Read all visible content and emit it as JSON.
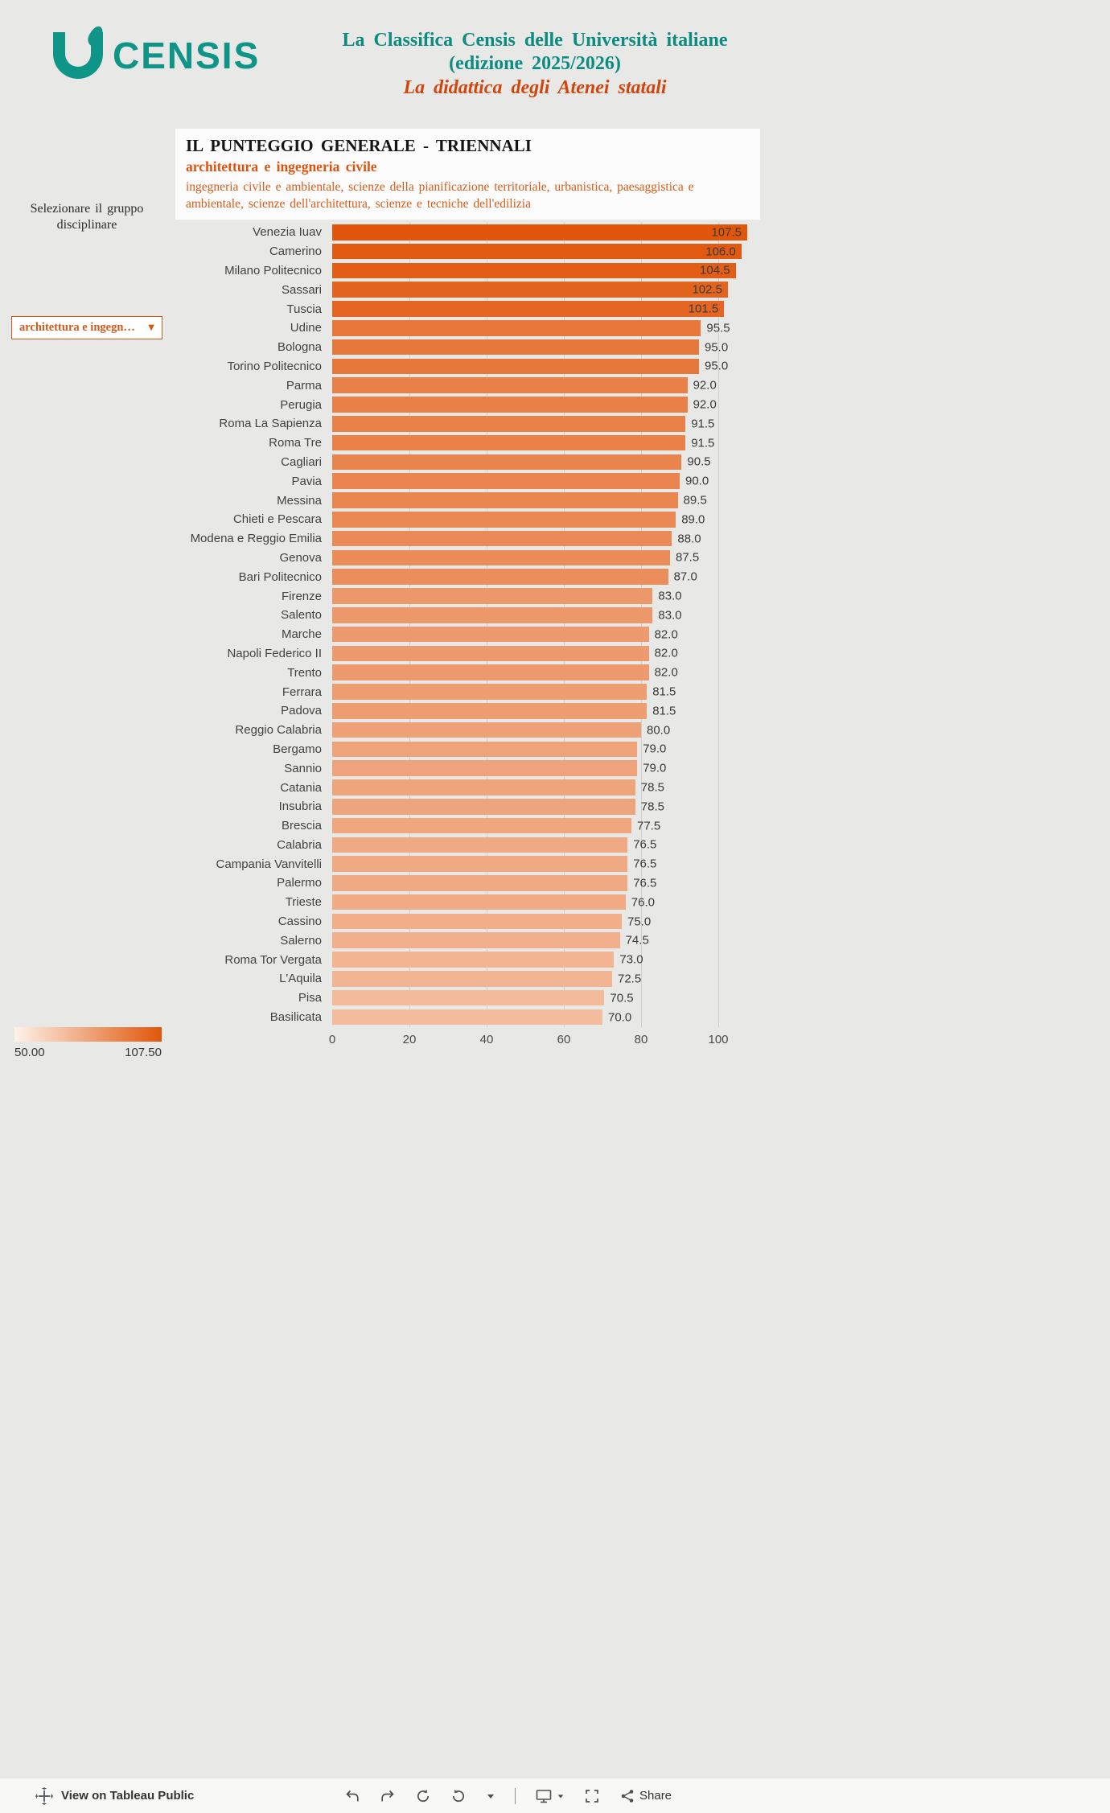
{
  "brand": {
    "teal": "#0f9488",
    "title_teal": "#0c8c80",
    "orange": "#d2440c"
  },
  "header": {
    "logo_text": "CENSIS",
    "title_line1": "La Classifica Censis delle Università italiane",
    "title_line2": "(edizione 2025/2026)",
    "subtitle": "La didattica degli Atenei statali"
  },
  "sidebar": {
    "filter_label": "Selezionare il gruppo disciplinare",
    "dropdown": {
      "value": "architettura e ingegn…"
    }
  },
  "panel": {
    "title": "IL PUNTEGGIO GENERALE - TRIENNALI",
    "subtitle": "architettura e ingegneria civile",
    "description": "ingegneria civile e ambientale, scienze della pianificazione territoriale, urbanistica, paesaggistica e ambientale, scienze dell'architettura, scienze e tecniche dell'edilizia"
  },
  "chart_data": {
    "type": "bar",
    "orientation": "horizontal",
    "title": "IL PUNTEGGIO GENERALE - TRIENNALI",
    "group": "architettura e ingegneria civile",
    "categories": [
      "Venezia Iuav",
      "Camerino",
      "Milano Politecnico",
      "Sassari",
      "Tuscia",
      "Udine",
      "Bologna",
      "Torino Politecnico",
      "Parma",
      "Perugia",
      "Roma La Sapienza",
      "Roma Tre",
      "Cagliari",
      "Pavia",
      "Messina",
      "Chieti e Pescara",
      "Modena e Reggio Emilia",
      "Genova",
      "Bari Politecnico",
      "Firenze",
      "Salento",
      "Marche",
      "Napoli Federico II",
      "Trento",
      "Ferrara",
      "Padova",
      "Reggio Calabria",
      "Bergamo",
      "Sannio",
      "Catania",
      "Insubria",
      "Brescia",
      "Calabria",
      "Campania Vanvitelli",
      "Palermo",
      "Trieste",
      "Cassino",
      "Salerno",
      "Roma Tor Vergata",
      "L'Aquila",
      "Pisa",
      "Basilicata"
    ],
    "values": [
      107.5,
      106.0,
      104.5,
      102.5,
      101.5,
      95.5,
      95.0,
      95.0,
      92.0,
      92.0,
      91.5,
      91.5,
      90.5,
      90.0,
      89.5,
      89.0,
      88.0,
      87.5,
      87.0,
      83.0,
      83.0,
      82.0,
      82.0,
      82.0,
      81.5,
      81.5,
      80.0,
      79.0,
      79.0,
      78.5,
      78.5,
      77.5,
      76.5,
      76.5,
      76.5,
      76.0,
      75.0,
      74.5,
      73.0,
      72.5,
      70.5,
      70.0
    ],
    "x_ticks": [
      0,
      20,
      40,
      60,
      80,
      100
    ],
    "xlim": [
      0,
      108.75
    ],
    "grid": true,
    "value_labels": true,
    "color_scale": {
      "min": 50.0,
      "max": 107.5,
      "min_color": "#fdf2ea",
      "max_color": "#e1560b",
      "min_label": "50.00",
      "max_label": "107.50"
    }
  },
  "footer": {
    "view_label": "View on Tableau Public",
    "share_label": "Share"
  }
}
